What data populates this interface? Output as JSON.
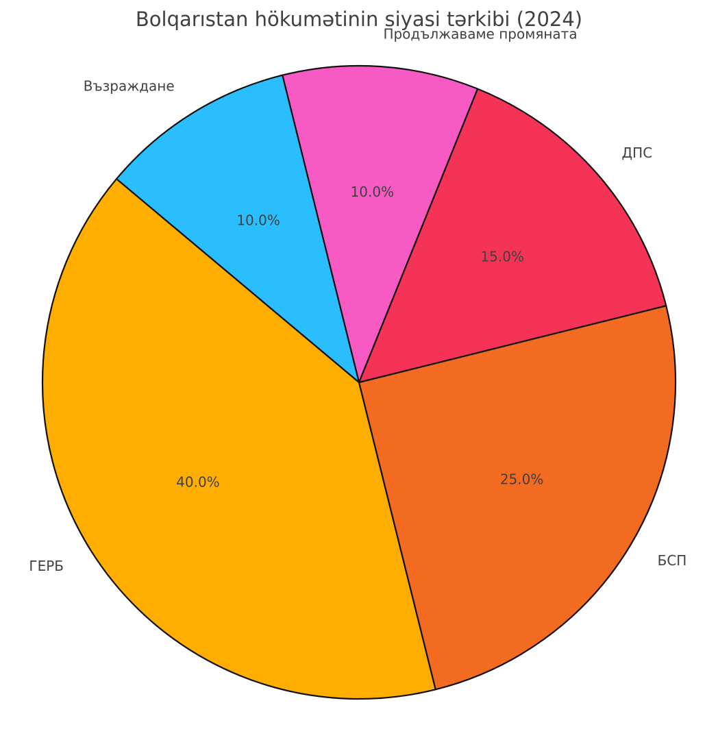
{
  "chart_data": {
    "type": "pie",
    "title": "Bolqarıstan hökumətinin siyasi tərkibi (2024)",
    "categories": [
      "ГЕРБ",
      "БСП",
      "ДПС",
      "Продължаваме промяната",
      "Възраждане"
    ],
    "values": [
      40,
      25,
      15,
      10,
      10
    ],
    "value_labels": [
      "40.0%",
      "25.0%",
      "15.0%",
      "10.0%",
      "10.0%"
    ],
    "colors": [
      "#ffae00",
      "#f26b21",
      "#f53357",
      "#f75ac2",
      "#2abeff"
    ]
  }
}
